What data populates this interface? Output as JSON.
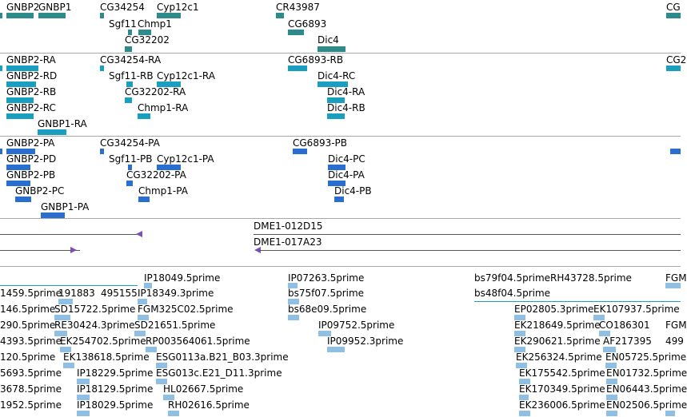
{
  "track_genes": {
    "labels": [
      "GNBP2",
      "GNBP1",
      "CG34254",
      "Cyp12c1",
      "CR43987",
      "Sgf11",
      "Chmp1",
      "CG6893",
      "CG32202",
      "Dic4",
      "CG"
    ]
  },
  "track_transcripts": {
    "labels": [
      "GNBP2-RA",
      "CG34254-RA",
      "CG6893-RB",
      "GNBP2-RD",
      "Sgf11-RB",
      "Cyp12c1-RA",
      "Dic4-RC",
      "GNBP2-RB",
      "CG32202-RA",
      "Dic4-RA",
      "GNBP2-RC",
      "Chmp1-RA",
      "Dic4-RB",
      "GNBP1-RA",
      "CG2"
    ]
  },
  "track_proteins": {
    "labels": [
      "GNBP2-PA",
      "CG34254-PA",
      "CG6893-PB",
      "GNBP2-PD",
      "Sgf11-PB",
      "Cyp12c1-PA",
      "Dic4-PC",
      "GNBP2-PB",
      "CG32202-PA",
      "Dic4-PA",
      "GNBP2-PC",
      "Chmp1-PA",
      "Dic4-PB",
      "GNBP1-PA"
    ]
  },
  "track_clones": {
    "labels": [
      "DME1-012D15",
      "DME1-017A23"
    ]
  },
  "track_est": {
    "labels": [
      "IP18049.5prime",
      "IP07263.5prime",
      "bs79f04.5prime",
      "RH43728.5prime",
      "FGM",
      "1459.5prime",
      "191883",
      "495155",
      "IP18349.3prime",
      "bs75f07.5prime",
      "bs48f04.5prime",
      "146.5prime",
      "SD15722.5prime",
      "FGM325C02.5prime",
      "bs68e09.5prime",
      "EP02805.3prime",
      "EK107937.5prime",
      "290.5prime",
      "RE30424.3prime",
      "SD21651.5prime",
      "IP09752.5prime",
      "EK218649.5prime",
      "CO186301",
      "FGM",
      "4393.5prime",
      "EK254702.5prime",
      "RP003564061.5prime",
      "IP09952.3prime",
      "EK290621.5prime",
      "AF217395",
      "499",
      "120.5prime",
      "EK138618.5prime",
      "ESG0113a.B21_B03.3prime",
      "EK256324.5prime",
      "EN05725.5prime",
      "5693.5prime",
      "IP18229.5prime",
      "ESG013c.E21_D11.3prime",
      "EK175542.5prime",
      "EN01732.5prime",
      "3678.5prime",
      "IP18129.5prime",
      "HL02667.5prime",
      "EK170349.5prime",
      "EN06443.5prime",
      "1952.5prime",
      "IP18029.5prime",
      "RH02616.5prime",
      "EK236006.5prime",
      "EN02506.5prime"
    ]
  },
  "colors": {
    "gene": "#2e8b8b",
    "transcript": "#1a9fc0",
    "protein": "#2a6fd0",
    "est": "#8fbfe2",
    "clone": "#7b4fb3",
    "separator": "#a8a8a8"
  }
}
